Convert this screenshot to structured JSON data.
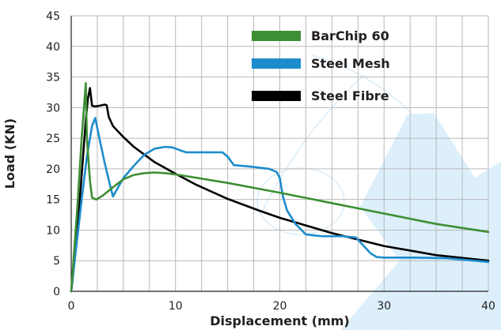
{
  "chart_data": {
    "type": "line",
    "title": "",
    "xlabel": "Displacement (mm)",
    "ylabel": "Load (KN)",
    "xlim": [
      0,
      40
    ],
    "ylim": [
      0,
      45
    ],
    "xticks": [
      0,
      10,
      20,
      30,
      40
    ],
    "yticks": [
      0,
      5,
      10,
      15,
      20,
      25,
      30,
      35,
      40,
      45
    ],
    "grid": true,
    "legend_position": "top-right",
    "watermark": "BarChip logo (light blue, decorative)",
    "series": [
      {
        "name": "BarChip 60",
        "color": "#3e8e34",
        "points": [
          [
            0,
            0
          ],
          [
            0.6,
            14
          ],
          [
            1,
            25
          ],
          [
            1.4,
            34
          ],
          [
            1.5,
            25
          ],
          [
            1.8,
            18
          ],
          [
            2,
            15.3
          ],
          [
            2.4,
            15
          ],
          [
            3,
            15.6
          ],
          [
            4,
            17
          ],
          [
            5,
            18.3
          ],
          [
            6,
            19
          ],
          [
            7,
            19.3
          ],
          [
            8,
            19.4
          ],
          [
            9,
            19.3
          ],
          [
            10,
            19.1
          ],
          [
            15,
            17.7
          ],
          [
            20,
            16.1
          ],
          [
            25,
            14.4
          ],
          [
            30,
            12.7
          ],
          [
            35,
            11
          ],
          [
            40,
            9.7
          ]
        ]
      },
      {
        "name": "Steel Mesh",
        "color": "#1d8ccc",
        "points": [
          [
            0,
            0
          ],
          [
            1,
            15
          ],
          [
            1.5,
            22
          ],
          [
            2,
            27
          ],
          [
            2.3,
            28.3
          ],
          [
            2.7,
            25
          ],
          [
            3.2,
            21
          ],
          [
            3.7,
            17.5
          ],
          [
            4,
            15.5
          ],
          [
            4.5,
            17
          ],
          [
            5,
            18.5
          ],
          [
            6,
            20.5
          ],
          [
            7,
            22.3
          ],
          [
            8,
            23.3
          ],
          [
            9,
            23.6
          ],
          [
            9.7,
            23.5
          ],
          [
            10.5,
            23
          ],
          [
            11,
            22.7
          ],
          [
            12,
            22.7
          ],
          [
            13,
            22.7
          ],
          [
            14,
            22.7
          ],
          [
            14.5,
            22.7
          ],
          [
            15,
            22
          ],
          [
            15.6,
            20.6
          ],
          [
            17,
            20.4
          ],
          [
            18,
            20.2
          ],
          [
            19,
            20
          ],
          [
            19.7,
            19.5
          ],
          [
            20,
            18.5
          ],
          [
            20.3,
            15.5
          ],
          [
            20.7,
            13.2
          ],
          [
            21.5,
            11
          ],
          [
            22.5,
            9.3
          ],
          [
            24,
            9
          ],
          [
            25,
            9
          ],
          [
            26,
            9
          ],
          [
            27.3,
            8.8
          ],
          [
            28,
            7.5
          ],
          [
            28.7,
            6.2
          ],
          [
            29.3,
            5.6
          ],
          [
            30,
            5.5
          ],
          [
            33,
            5.5
          ],
          [
            36,
            5.4
          ],
          [
            40,
            4.8
          ]
        ]
      },
      {
        "name": "Steel Fibre",
        "color": "#000000",
        "points": [
          [
            0,
            0
          ],
          [
            0.5,
            8
          ],
          [
            1,
            19
          ],
          [
            1.4,
            28
          ],
          [
            1.6,
            31.5
          ],
          [
            1.8,
            33.2
          ],
          [
            2,
            30.3
          ],
          [
            2.3,
            30.2
          ],
          [
            2.7,
            30.3
          ],
          [
            3.2,
            30.5
          ],
          [
            3.4,
            30.4
          ],
          [
            3.6,
            28.5
          ],
          [
            4,
            27
          ],
          [
            5,
            25.2
          ],
          [
            6,
            23.6
          ],
          [
            8,
            21.1
          ],
          [
            10,
            19.2
          ],
          [
            12,
            17.4
          ],
          [
            15,
            15.1
          ],
          [
            18,
            13.2
          ],
          [
            20,
            12
          ],
          [
            25,
            9.5
          ],
          [
            30,
            7.4
          ],
          [
            35,
            5.9
          ],
          [
            40,
            5
          ]
        ]
      }
    ]
  }
}
